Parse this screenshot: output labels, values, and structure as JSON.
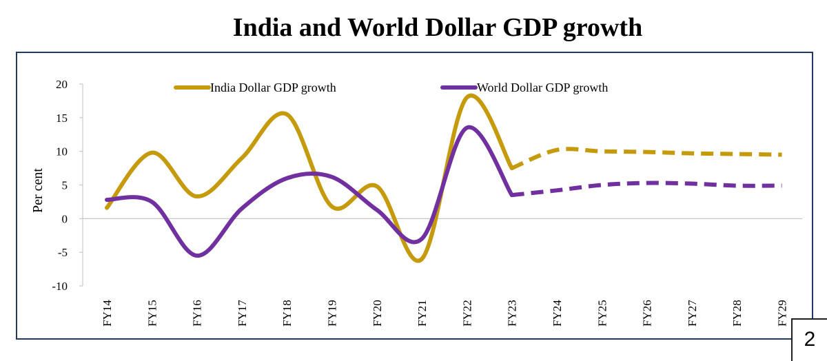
{
  "page": {
    "title": "India and World Dollar GDP growth",
    "page_number": "2"
  },
  "chart_data": {
    "type": "line",
    "title": "India and World Dollar GDP growth",
    "xlabel": "",
    "ylabel": "Per cent",
    "ylim": [
      -10,
      20
    ],
    "yticks": [
      20,
      15,
      10,
      5,
      0,
      -5,
      -10
    ],
    "ytick_labels": [
      "20",
      "15",
      "10",
      "5",
      "0",
      "-5",
      "-10"
    ],
    "categories": [
      "FY14",
      "FY15",
      "FY16",
      "FY17",
      "FY18",
      "FY19",
      "FY20",
      "FY21",
      "FY22",
      "FY23",
      "FY24",
      "FY25",
      "FY26",
      "FY27",
      "FY28",
      "FY29"
    ],
    "forecast_start_index": 9,
    "legend_position": "top",
    "grid": false,
    "series": [
      {
        "name": "India Dollar GDP growth",
        "color": "#c59a0c",
        "values": [
          1.6,
          9.8,
          3.3,
          9.0,
          15.5,
          1.8,
          4.8,
          -6.0,
          18.0,
          7.5,
          10.2,
          10.0,
          9.9,
          9.7,
          9.6,
          9.5
        ]
      },
      {
        "name": "World Dollar GDP growth",
        "color": "#7030a0",
        "values": [
          2.8,
          2.5,
          -5.5,
          1.5,
          6.0,
          6.2,
          1.3,
          -3.0,
          13.5,
          3.5,
          4.2,
          5.0,
          5.3,
          5.2,
          4.9,
          4.9
        ]
      }
    ]
  }
}
